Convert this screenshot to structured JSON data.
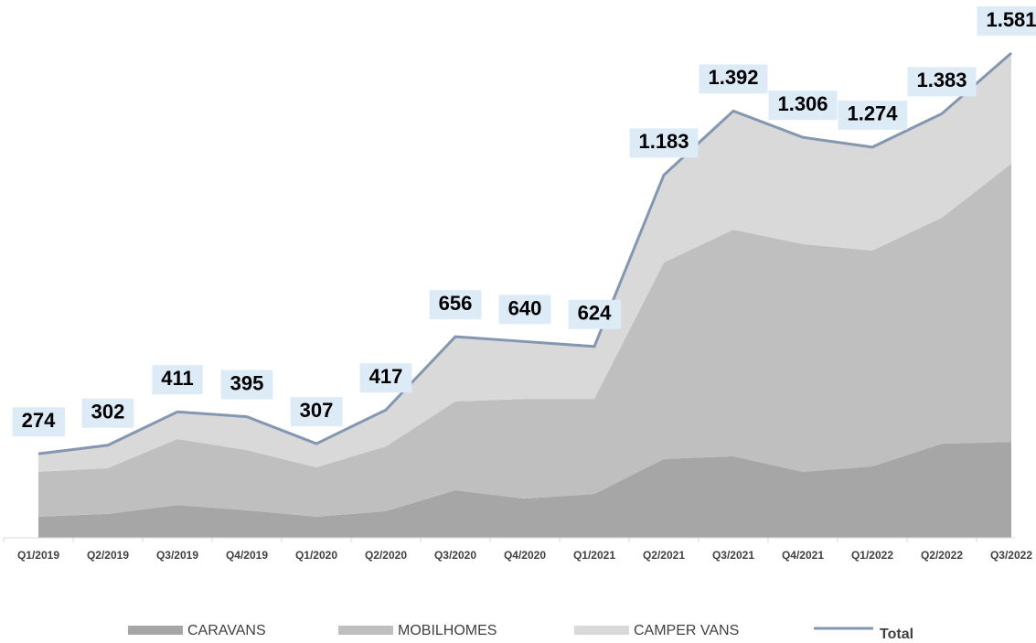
{
  "chart_data": {
    "type": "stacked_area",
    "categories": [
      "Q1/2019",
      "Q2/2019",
      "Q3/2019",
      "Q4/2019",
      "Q1/2020",
      "Q2/2020",
      "Q3/2020",
      "Q4/2020",
      "Q1/2021",
      "Q2/2021",
      "Q3/2021",
      "Q4/2021",
      "Q1/2022",
      "Q2/2022",
      "Q3/2022"
    ],
    "series": [
      {
        "name": "CARAVANS",
        "color": "#a6a6a6",
        "values": [
          69,
          78,
          107,
          90,
          69,
          87,
          155,
          128,
          143,
          257,
          266,
          215,
          233,
          307,
          313
        ]
      },
      {
        "name": "MOBILHOMES",
        "color": "#bfbfbf",
        "values": [
          146,
          149,
          215,
          196,
          161,
          211,
          290,
          325,
          310,
          641,
          739,
          743,
          704,
          737,
          907
        ]
      },
      {
        "name": "CAMPER VANS",
        "color": "#d9d9d9",
        "values": [
          59,
          75,
          89,
          109,
          77,
          119,
          211,
          187,
          171,
          285,
          387,
          348,
          337,
          339,
          361
        ]
      }
    ],
    "total": {
      "name": "Total",
      "color": "#8497b0",
      "values": [
        274,
        302,
        411,
        395,
        307,
        417,
        656,
        640,
        624,
        1183,
        1392,
        1306,
        1274,
        1383,
        1581
      ],
      "value_labels": [
        "274",
        "302",
        "411",
        "395",
        "307",
        "417",
        "656",
        "640",
        "624",
        "1.183",
        "1.392",
        "1.306",
        "1.274",
        "1.383",
        "1.581"
      ]
    },
    "ylim": [
      0,
      1600
    ]
  }
}
